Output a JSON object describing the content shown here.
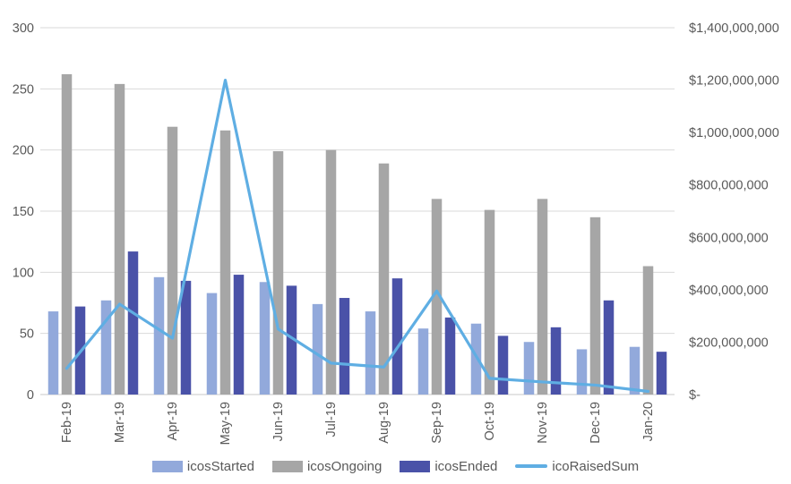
{
  "chart_data": {
    "type": "combo-bar-line",
    "title": "",
    "categories": [
      "Feb-19",
      "Mar-19",
      "Apr-19",
      "May-19",
      "Jun-19",
      "Jul-19",
      "Aug-19",
      "Sep-19",
      "Oct-19",
      "Nov-19",
      "Dec-19",
      "Jan-20"
    ],
    "bar_series": [
      {
        "name": "icosStarted",
        "color": "#92A9DB",
        "values": [
          68,
          77,
          96,
          83,
          92,
          74,
          68,
          54,
          58,
          43,
          37,
          39
        ]
      },
      {
        "name": "icosOngoing",
        "color": "#A6A6A6",
        "values": [
          262,
          254,
          219,
          216,
          199,
          200,
          189,
          160,
          151,
          160,
          145,
          105
        ]
      },
      {
        "name": "icosEnded",
        "color": "#4A52A8",
        "values": [
          72,
          117,
          93,
          98,
          89,
          79,
          95,
          63,
          48,
          55,
          77,
          35
        ]
      }
    ],
    "line_series": {
      "name": "icoRaisedSum",
      "color": "#5FAEE3",
      "values_usd": [
        100000000,
        345000000,
        215000000,
        1200000000,
        250000000,
        120000000,
        105000000,
        395000000,
        62000000,
        48000000,
        36000000,
        12000000
      ]
    },
    "left_axis": {
      "min": 0,
      "max": 300,
      "step": 50,
      "ticks": [
        "0",
        "50",
        "100",
        "150",
        "200",
        "250",
        "300"
      ]
    },
    "right_axis": {
      "min": 0,
      "max": 1400000000,
      "step": 200000000,
      "ticks": [
        "$-",
        "$200,000,000",
        "$400,000,000",
        "$600,000,000",
        "$800,000,000",
        "$1,000,000,000",
        "$1,200,000,000",
        "$1,400,000,000"
      ]
    },
    "grid": true,
    "legend_position": "bottom",
    "colors": {
      "gridline": "#D9D9D9",
      "axis_line": "#C9C9C9",
      "axis_text": "#595959",
      "background": "#FFFFFF"
    }
  }
}
